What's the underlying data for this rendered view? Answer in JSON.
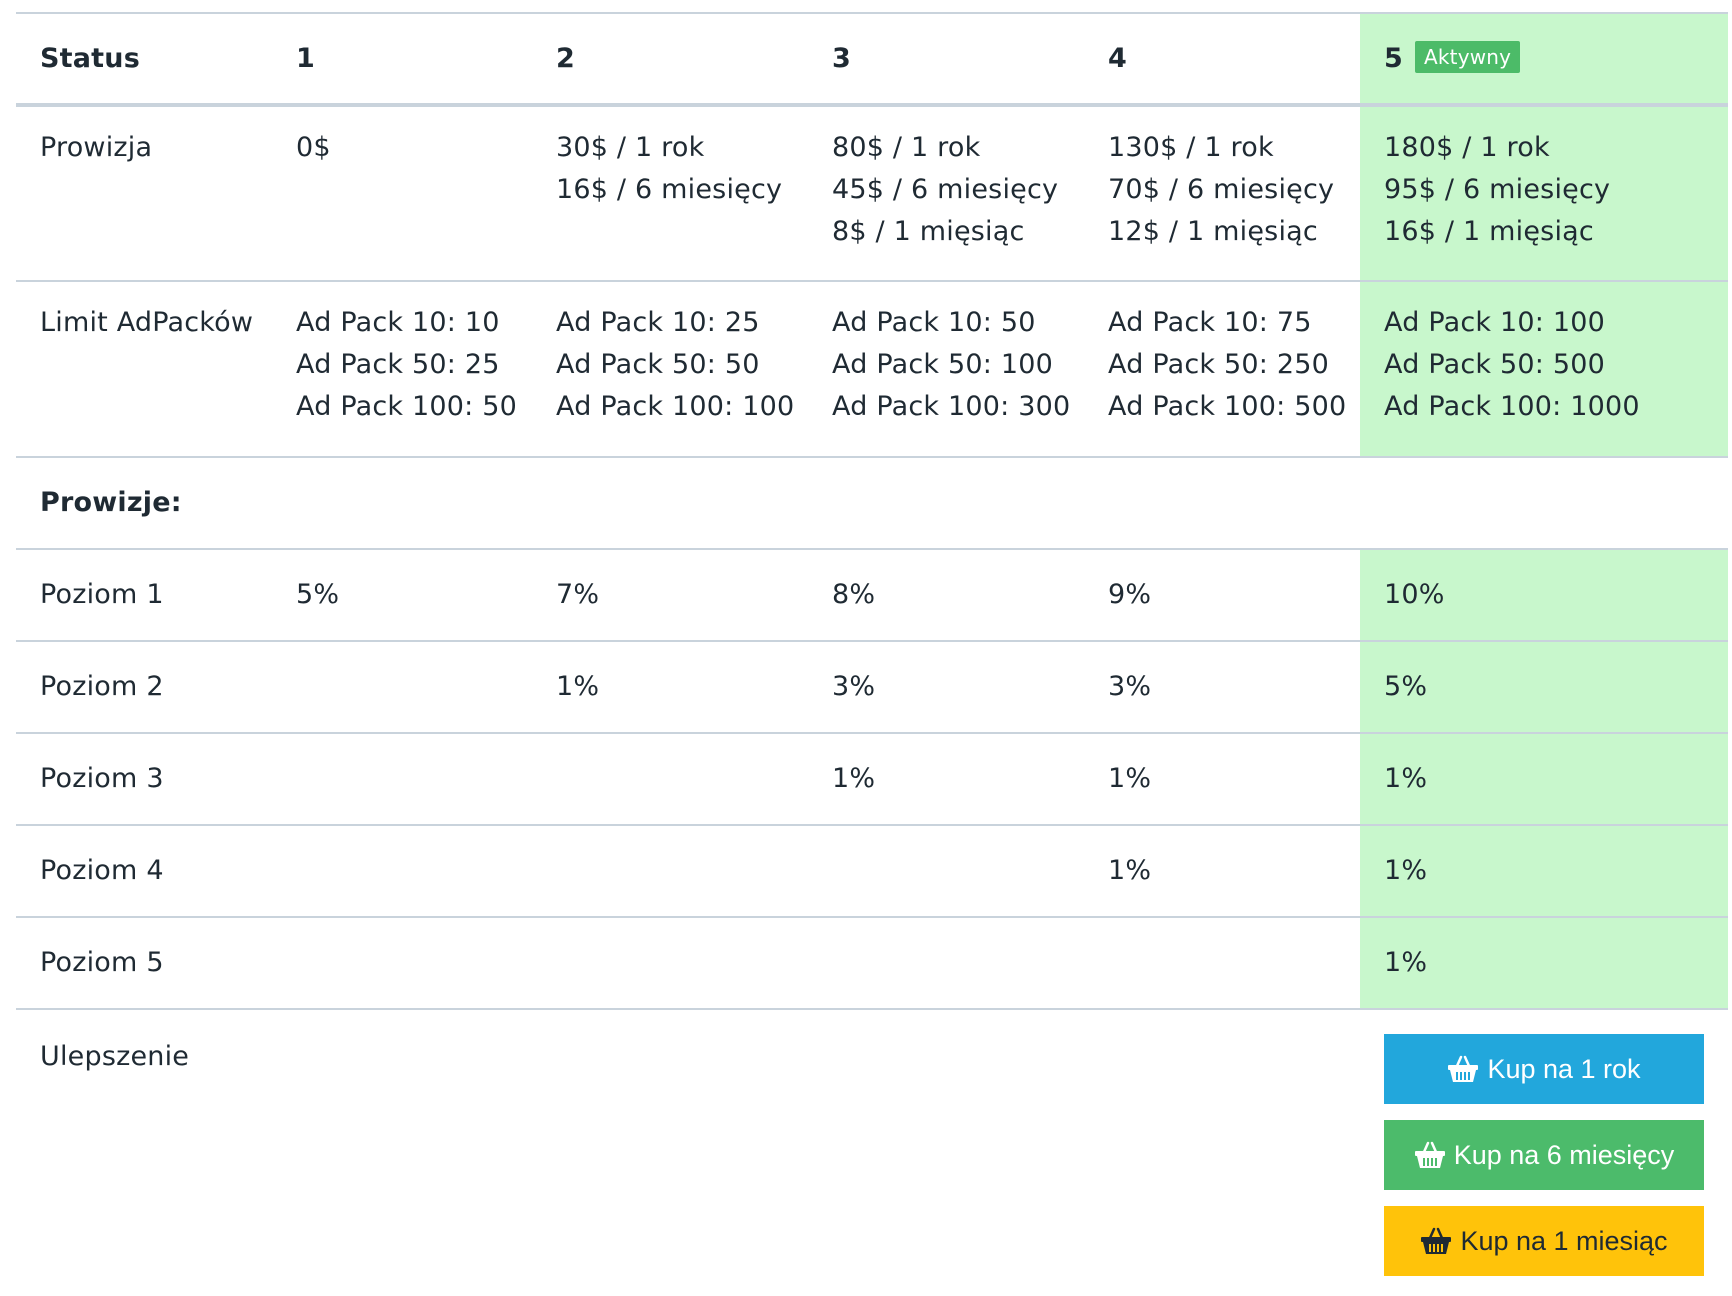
{
  "header": {
    "status_label": "Status",
    "levels": [
      "1",
      "2",
      "3",
      "4",
      "5"
    ],
    "active_badge": "Aktywny"
  },
  "rows": {
    "prowizja": {
      "label": "Prowizja",
      "cells": [
        [
          "0$"
        ],
        [
          "30$ / 1 rok",
          "16$ / 6 miesięcy"
        ],
        [
          "80$ / 1 rok",
          "45$ / 6 miesięcy",
          "8$ / 1 mięsiąc"
        ],
        [
          "130$ / 1 rok",
          "70$ / 6 miesięcy",
          "12$ / 1 mięsiąc"
        ],
        [
          "180$ / 1 rok",
          "95$ / 6 miesięcy",
          "16$ / 1 mięsiąc"
        ]
      ]
    },
    "limit": {
      "label": "Limit AdPacków",
      "cells": [
        [
          "Ad Pack 10: 10",
          "Ad Pack 50: 25",
          "Ad Pack 100: 50"
        ],
        [
          "Ad Pack 10: 25",
          "Ad Pack 50: 50",
          "Ad Pack 100: 100"
        ],
        [
          "Ad Pack 10: 50",
          "Ad Pack 50: 100",
          "Ad Pack 100: 300"
        ],
        [
          "Ad Pack 10: 75",
          "Ad Pack 50: 250",
          "Ad Pack 100: 500"
        ],
        [
          "Ad Pack 10: 100",
          "Ad Pack 50: 500",
          "Ad Pack 100: 1000"
        ]
      ]
    },
    "section_label": "Prowizje:",
    "poziomy": [
      {
        "label": "Poziom 1",
        "cells": [
          "5%",
          "7%",
          "8%",
          "9%",
          "10%"
        ]
      },
      {
        "label": "Poziom 2",
        "cells": [
          "",
          "1%",
          "3%",
          "3%",
          "5%"
        ]
      },
      {
        "label": "Poziom 3",
        "cells": [
          "",
          "",
          "1%",
          "1%",
          "1%"
        ]
      },
      {
        "label": "Poziom 4",
        "cells": [
          "",
          "",
          "",
          "1%",
          "1%"
        ]
      },
      {
        "label": "Poziom 5",
        "cells": [
          "",
          "",
          "",
          "",
          "1%"
        ]
      }
    ],
    "upgrade": {
      "label": "Ulepszenie",
      "buttons": {
        "year": "Kup na 1 rok",
        "six_months": "Kup na 6 miesięcy",
        "month": "Kup na 1 miesiąc"
      }
    }
  },
  "colors": {
    "active_column": "#c8f7cc",
    "badge": "#4cbb68",
    "btn_blue": "#22a7dc",
    "btn_green": "#4cbb6b",
    "btn_yellow": "#ffc30a"
  },
  "icons": {
    "button_icon": "basket-icon"
  }
}
